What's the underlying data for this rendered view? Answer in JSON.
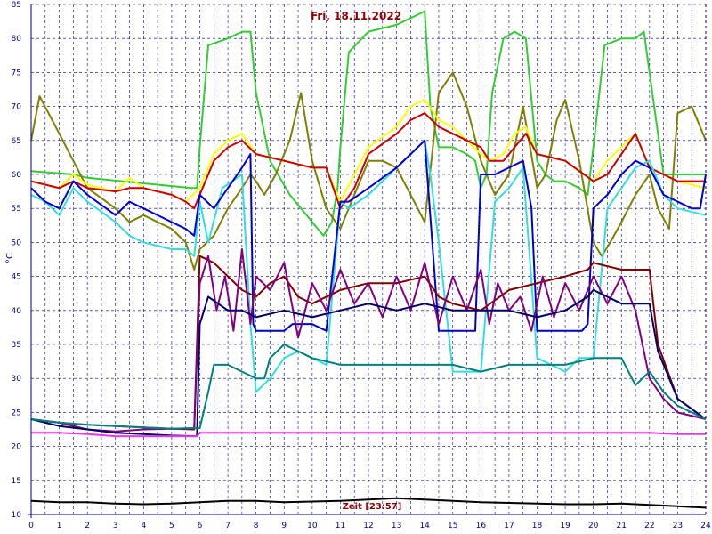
{
  "chart_data": {
    "type": "line",
    "title": "Fri, 18.11.2022",
    "xlabel": "Zeit [23:57]",
    "ylabel": "°C",
    "xlim": [
      0,
      24
    ],
    "ylim": [
      10,
      85
    ],
    "xticks": [
      "0",
      "1",
      "2",
      "3",
      "4",
      "5",
      "6",
      "7",
      "8",
      "9",
      "10",
      "11",
      "12",
      "13",
      "14",
      "15",
      "16",
      "17",
      "18",
      "19",
      "20",
      "21",
      "22",
      "23",
      "24"
    ],
    "yticks": [
      "10",
      "15",
      "20",
      "25",
      "30",
      "35",
      "40",
      "45",
      "50",
      "55",
      "60",
      "65",
      "70",
      "75",
      "80",
      "85"
    ],
    "grid": true,
    "series": [
      {
        "color": "#33cc33",
        "x": [
          0,
          1.5,
          2,
          5.7,
          5.9,
          6.0,
          6.3,
          7.0,
          7.5,
          7.8,
          8.0,
          8.5,
          9.2,
          10.2,
          10.4,
          10.7,
          10.9,
          11.0,
          11.3,
          12.0,
          13.0,
          13.5,
          14.0,
          14.2,
          14.5,
          15.0,
          15.5,
          15.8,
          16.0,
          16.2,
          16.4,
          16.8,
          17.2,
          17.6,
          18.0,
          18.3,
          18.6,
          19.0,
          19.5,
          19.8,
          20.0,
          20.4,
          21.0,
          21.5,
          21.8,
          22.0,
          22.5,
          23.0,
          23.5,
          24.0
        ],
        "y": [
          60.5,
          60,
          59.5,
          58,
          58,
          64,
          79,
          80,
          81,
          81,
          72,
          62,
          57,
          52,
          51,
          53,
          58,
          64,
          78,
          81,
          82,
          83,
          84,
          70,
          64,
          64,
          63,
          62,
          58,
          60,
          72,
          80,
          81,
          80,
          62,
          60,
          59,
          59,
          58,
          57,
          64,
          79,
          80,
          80,
          81,
          75,
          60,
          60,
          60,
          60
        ]
      },
      {
        "color": "#808000",
        "x": [
          0,
          0.3,
          1.0,
          1.5,
          2.0,
          3.0,
          3.5,
          4.0,
          5.0,
          5.5,
          5.8,
          6.0,
          6.5,
          7.0,
          7.5,
          7.8,
          8.0,
          8.3,
          8.7,
          9.2,
          9.6,
          10.0,
          10.5,
          11.0,
          11.5,
          12.0,
          12.5,
          13.0,
          13.5,
          14.0,
          14.5,
          15.0,
          15.5,
          16.0,
          16.5,
          17.0,
          17.5,
          18.0,
          18.3,
          18.7,
          19.0,
          19.5,
          20.0,
          20.3,
          20.6,
          21.0,
          21.5,
          22.0,
          22.3,
          22.7,
          23.0,
          23.5,
          24.0
        ],
        "y": [
          65,
          71.5,
          66,
          62,
          58,
          55,
          53,
          54,
          52,
          50,
          46,
          49,
          51,
          55,
          58,
          60,
          59,
          57,
          60,
          65,
          72,
          62,
          55,
          52,
          57,
          62,
          62,
          61,
          57,
          53,
          72,
          75,
          70,
          62,
          57,
          60,
          70,
          58,
          60,
          68,
          71,
          62,
          50,
          48,
          50,
          53,
          57,
          60,
          55,
          52,
          69,
          70,
          65
        ]
      },
      {
        "color": "#ffff00",
        "x": [
          0,
          0.5,
          1,
          1.5,
          2,
          3,
          3.5,
          4,
          5,
          5.5,
          6.0,
          6.5,
          7.0,
          7.5,
          8.0,
          9.0,
          10.0,
          10.5,
          11.0,
          11.5,
          12.0,
          13.0,
          13.5,
          14.0,
          14.5,
          15.0,
          16.0,
          16.3,
          16.8,
          17.2,
          17.6,
          18.0,
          19.0,
          20.0,
          20.5,
          21.0,
          21.5,
          22.0,
          22.5,
          23.0,
          24.0
        ],
        "y": [
          59,
          58.5,
          58,
          60,
          58.5,
          57.5,
          59.5,
          58,
          57,
          56,
          58,
          63,
          65,
          66,
          63,
          62,
          61,
          61,
          56,
          60,
          64,
          67,
          70,
          71,
          68,
          67,
          63,
          62,
          63,
          66,
          67,
          63,
          62,
          59,
          62,
          64,
          66,
          61,
          60,
          59,
          58
        ]
      },
      {
        "color": "#cc0000",
        "x": [
          0,
          0.5,
          1,
          1.5,
          2,
          3,
          3.5,
          4,
          5,
          5.5,
          5.8,
          6.0,
          6.5,
          7.0,
          7.5,
          8.0,
          9.0,
          10.0,
          10.5,
          11.0,
          11.5,
          12.0,
          13.0,
          13.5,
          14.0,
          14.5,
          15.0,
          16.0,
          16.3,
          16.8,
          17.2,
          17.6,
          18.0,
          19.0,
          20.0,
          20.5,
          21.0,
          21.5,
          22.0,
          22.5,
          23.0,
          24.0
        ],
        "y": [
          59,
          58.5,
          58,
          59,
          58,
          57.5,
          58,
          58,
          57,
          56,
          55,
          57,
          62,
          64,
          65,
          63,
          62,
          61,
          61,
          55,
          58,
          63,
          66,
          68,
          69,
          67,
          66,
          64,
          62,
          62,
          64,
          66,
          63,
          62,
          59,
          60,
          63,
          66,
          61,
          60,
          59,
          59
        ]
      },
      {
        "color": "#33dddd",
        "x": [
          0,
          0.5,
          1,
          1.5,
          2,
          3,
          3.5,
          4,
          5,
          5.5,
          5.8,
          6.0,
          6.3,
          6.8,
          7.5,
          7.8,
          8.0,
          8.5,
          9.0,
          9.5,
          10.0,
          10.5,
          11.0,
          11.3,
          12.0,
          12.5,
          13.0,
          13.5,
          14.0,
          14.2,
          14.5,
          15.0,
          15.5,
          15.8,
          16.0,
          16.5,
          17.0,
          17.5,
          18.0,
          18.5,
          19.0,
          19.5,
          20.0,
          20.5,
          21.0,
          21.5,
          22.0,
          22.5,
          23.0,
          24.0
        ],
        "y": [
          57,
          56,
          54,
          58,
          56,
          53,
          51,
          50,
          49,
          49,
          48,
          56,
          50,
          58,
          60,
          38,
          28,
          30,
          33,
          34,
          33,
          32,
          56,
          55,
          57,
          59,
          61,
          63,
          65,
          60,
          50,
          31,
          31,
          31,
          31,
          56,
          58,
          61,
          33,
          32,
          31,
          33,
          33,
          55,
          58,
          61,
          62,
          57,
          55,
          54
        ]
      },
      {
        "color": "#0000cc",
        "x": [
          0,
          0.5,
          1,
          1.5,
          2,
          3,
          3.5,
          4,
          5,
          5.5,
          5.8,
          6.0,
          6.5,
          7.0,
          7.5,
          7.8,
          7.9,
          8.0,
          9.0,
          9.3,
          10.0,
          10.5,
          11.0,
          11.3,
          12.0,
          13.0,
          13.5,
          14.0,
          14.5,
          15.5,
          15.8,
          16.0,
          16.5,
          17.0,
          17.5,
          17.8,
          18.0,
          19.0,
          19.6,
          19.8,
          20.0,
          20.5,
          21.0,
          21.5,
          22.0,
          22.5,
          23.0,
          23.5,
          23.8,
          24.0
        ],
        "y": [
          58,
          56,
          55,
          59,
          57,
          54,
          56,
          55,
          53,
          52,
          51,
          57,
          55,
          58,
          61,
          63,
          38,
          37,
          37,
          38,
          38,
          37,
          56,
          56,
          58,
          61,
          63,
          65,
          37,
          37,
          37,
          60,
          60,
          61,
          62,
          55,
          37,
          37,
          37,
          38,
          55,
          57,
          60,
          62,
          61,
          57,
          56,
          55,
          55,
          60
        ]
      },
      {
        "color": "#800000",
        "x": [
          0,
          1,
          2,
          3,
          4,
          5,
          5.8,
          6.0,
          6.5,
          7.0,
          7.5,
          8.0,
          8.5,
          9.0,
          9.5,
          10.0,
          11.0,
          12.0,
          13.0,
          14.0,
          14.5,
          15.0,
          16.0,
          17.0,
          18.0,
          19.0,
          19.8,
          20.0,
          21.0,
          22.0,
          22.3,
          23.0,
          24.0
        ],
        "y": [
          24,
          23.5,
          23.2,
          23,
          22.8,
          22.6,
          22.5,
          48,
          47,
          45,
          43,
          42,
          44,
          45,
          42,
          41,
          43,
          44,
          44,
          45,
          42,
          41,
          40,
          43,
          44,
          45,
          46,
          47,
          46,
          46,
          35,
          27,
          24
        ]
      },
      {
        "color": "#800080",
        "x": [
          0,
          1,
          2,
          3,
          4,
          5,
          5.8,
          6.0,
          6.3,
          6.6,
          6.9,
          7.2,
          7.5,
          7.8,
          8.0,
          8.5,
          9.0,
          9.5,
          10.0,
          10.5,
          11.0,
          11.5,
          12.0,
          12.5,
          13.0,
          13.5,
          14.0,
          14.5,
          15.0,
          15.5,
          16.0,
          16.3,
          16.6,
          17.0,
          17.4,
          17.8,
          18.2,
          18.6,
          19.0,
          19.5,
          20.0,
          20.5,
          21.0,
          21.5,
          22.0,
          22.5,
          23.0,
          24.0
        ],
        "y": [
          24,
          23.5,
          22.5,
          22.2,
          22.5,
          22.6,
          22.7,
          44,
          48,
          40,
          45,
          37,
          49,
          38,
          45,
          43,
          47,
          36,
          44,
          40,
          46,
          41,
          44,
          39,
          45,
          40,
          47,
          38,
          45,
          40,
          46,
          38,
          44,
          40,
          42,
          37,
          45,
          39,
          44,
          40,
          45,
          41,
          45,
          40,
          30,
          27,
          25,
          24
        ]
      },
      {
        "color": "#000066",
        "x": [
          0,
          1,
          2,
          3,
          4,
          5,
          5.9,
          6.0,
          6.3,
          7.0,
          7.5,
          8.0,
          9.0,
          10.0,
          11.0,
          12.0,
          13.0,
          14.0,
          15.0,
          16.0,
          17.0,
          18.0,
          19.0,
          19.8,
          20.0,
          21.0,
          22.0,
          22.3,
          23.0,
          24.0
        ],
        "y": [
          24,
          23,
          22.5,
          22,
          21.8,
          21.6,
          21.5,
          38,
          42,
          40,
          40,
          39,
          40,
          39,
          40,
          41,
          40,
          41,
          40,
          40,
          40,
          39,
          40,
          42,
          43,
          41,
          41,
          34,
          27,
          24
        ]
      },
      {
        "color": "#008080",
        "x": [
          0,
          1,
          2,
          3,
          4,
          5,
          6.0,
          6.3,
          6.5,
          7.0,
          7.5,
          8.0,
          8.3,
          8.5,
          9.0,
          9.5,
          10.0,
          11.0,
          12.0,
          13.0,
          14.0,
          15.0,
          16.0,
          17.0,
          18.0,
          19.0,
          20.0,
          21.0,
          21.5,
          22.0,
          22.5,
          23.0,
          24.0
        ],
        "y": [
          24,
          23.5,
          23.2,
          23,
          22.8,
          22.6,
          22.7,
          28,
          32,
          32,
          31,
          30,
          30,
          33,
          35,
          34,
          33,
          32,
          32,
          32,
          32,
          32,
          31,
          32,
          32,
          32,
          33,
          33,
          29,
          31,
          28,
          26,
          24
        ]
      },
      {
        "color": "#ee33ee",
        "x": [
          0,
          1,
          2,
          3,
          4,
          5,
          5.9,
          6.0,
          7,
          8,
          9,
          10,
          11,
          12,
          13,
          14,
          15,
          16,
          17,
          18,
          19,
          20,
          21,
          22,
          23,
          24
        ],
        "y": [
          22,
          22,
          21.8,
          21.5,
          21.5,
          21.5,
          21.5,
          22,
          22,
          22,
          22,
          22,
          22,
          22,
          22,
          22,
          22,
          22,
          22,
          22,
          22,
          22,
          22,
          22,
          21.8,
          21.8
        ]
      },
      {
        "color": "#000000",
        "x": [
          0,
          1,
          2,
          3,
          4,
          5,
          6,
          7,
          8,
          9,
          10,
          11,
          12,
          13,
          14,
          15,
          16,
          17,
          18,
          19,
          20,
          21,
          22,
          23,
          24
        ],
        "y": [
          12,
          11.8,
          11.8,
          11.6,
          11.5,
          11.6,
          11.8,
          12,
          12,
          11.8,
          11.9,
          12,
          12.2,
          12.4,
          12.2,
          12,
          11.8,
          11.7,
          11.6,
          11.5,
          11.5,
          11.6,
          11.4,
          11.2,
          11
        ]
      }
    ]
  }
}
